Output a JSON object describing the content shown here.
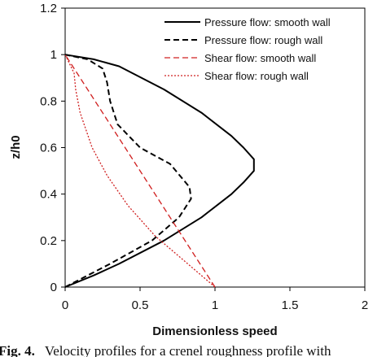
{
  "chart_data": {
    "type": "line",
    "title": "",
    "xlabel": "Dimensionless speed",
    "ylabel": "z/h0",
    "xlim": [
      0,
      2
    ],
    "ylim": [
      0,
      1.2
    ],
    "x_ticks": [
      "0",
      "0.5",
      "1",
      "1.5",
      "2"
    ],
    "y_ticks": [
      "0",
      "0.2",
      "0.4",
      "0.6",
      "0.8",
      "1",
      "1.2"
    ],
    "x_tick_values": [
      0,
      0.5,
      1,
      1.5,
      2
    ],
    "y_tick_values": [
      0,
      0.2,
      0.4,
      0.6,
      0.8,
      1,
      1.2
    ],
    "grid": false,
    "legend_position": "top-right",
    "series": [
      {
        "name": "Pressure flow: smooth wall",
        "color": "#000000",
        "style": "solid",
        "points": [
          [
            0,
            0
          ],
          [
            0.19,
            0.05
          ],
          [
            0.36,
            0.1
          ],
          [
            0.66,
            0.2
          ],
          [
            0.91,
            0.3
          ],
          [
            1.11,
            0.4
          ],
          [
            1.19,
            0.45
          ],
          [
            1.26,
            0.5
          ],
          [
            1.26,
            0.55
          ],
          [
            1.19,
            0.6
          ],
          [
            1.11,
            0.65
          ],
          [
            0.91,
            0.75
          ],
          [
            0.66,
            0.85
          ],
          [
            0.36,
            0.95
          ],
          [
            0.19,
            0.98
          ],
          [
            0,
            1
          ]
        ]
      },
      {
        "name": "Pressure flow: rough wall",
        "color": "#000000",
        "style": "dashed",
        "points": [
          [
            0,
            0
          ],
          [
            0.3,
            0.1
          ],
          [
            0.58,
            0.2
          ],
          [
            0.76,
            0.3
          ],
          [
            0.84,
            0.38
          ],
          [
            0.83,
            0.43
          ],
          [
            0.7,
            0.53
          ],
          [
            0.5,
            0.6
          ],
          [
            0.35,
            0.7
          ],
          [
            0.3,
            0.8
          ],
          [
            0.28,
            0.88
          ],
          [
            0.25,
            0.94
          ],
          [
            0.15,
            0.98
          ],
          [
            0,
            1
          ]
        ]
      },
      {
        "name": "Shear flow: smooth wall",
        "color": "#d02020",
        "style": "dashed",
        "points": [
          [
            1,
            0
          ],
          [
            0,
            1
          ]
        ]
      },
      {
        "name": "Shear flow: rough wall",
        "color": "#d02020",
        "style": "dotted",
        "points": [
          [
            1,
            0
          ],
          [
            0.6,
            0.22
          ],
          [
            0.42,
            0.35
          ],
          [
            0.28,
            0.48
          ],
          [
            0.18,
            0.6
          ],
          [
            0.1,
            0.75
          ],
          [
            0.07,
            0.85
          ],
          [
            0.06,
            0.92
          ],
          [
            0,
            1
          ]
        ]
      }
    ]
  },
  "caption": {
    "label": "Fig. 4.",
    "text": "Velocity profiles for a crenel roughness profile with"
  }
}
